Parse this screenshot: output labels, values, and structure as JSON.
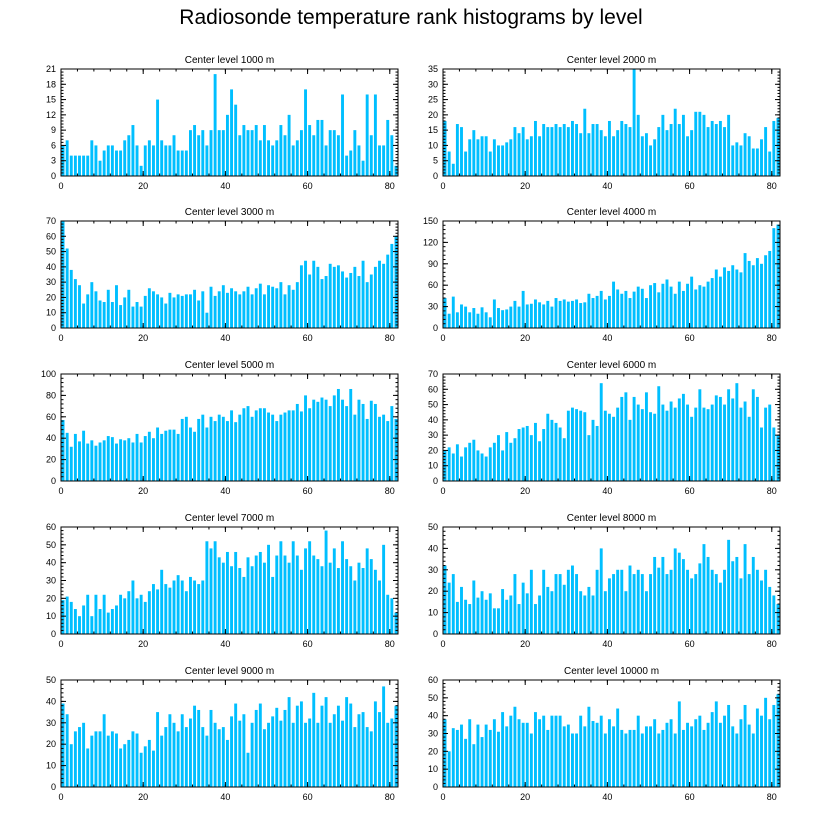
{
  "title": "Radiosonde temperature rank histograms by level",
  "colors": {
    "bar": "#00bfff",
    "axis": "#000000",
    "background": "#ffffff"
  },
  "chart_data": [
    {
      "type": "bar",
      "title": "Center level 1000 m",
      "xlim": [
        0,
        82
      ],
      "xticks": [
        0,
        20,
        40,
        60,
        80
      ],
      "ylim": [
        0,
        21
      ],
      "yticks": [
        0,
        3,
        6,
        9,
        12,
        15,
        18,
        21
      ],
      "values": [
        6,
        7,
        4,
        4,
        4,
        4,
        4,
        7,
        6,
        3,
        5,
        6,
        6,
        5,
        5,
        7,
        8,
        10,
        6,
        2,
        6,
        7,
        6,
        15,
        7,
        6,
        6,
        8,
        5,
        5,
        5,
        9,
        10,
        8,
        9,
        6,
        9,
        20,
        9,
        9,
        12,
        17,
        14,
        8,
        10,
        9,
        9,
        10,
        7,
        10,
        7,
        6,
        7,
        10,
        8,
        12,
        6,
        7,
        9,
        17,
        10,
        8,
        11,
        11,
        6,
        9,
        9,
        8,
        16,
        4,
        5,
        9,
        6,
        3,
        16,
        8,
        16,
        6,
        6,
        11,
        8,
        2
      ]
    },
    {
      "type": "bar",
      "title": "Center level 2000 m",
      "xlim": [
        0,
        82
      ],
      "xticks": [
        0,
        20,
        40,
        60,
        80
      ],
      "ylim": [
        0,
        35
      ],
      "yticks": [
        0,
        5,
        10,
        15,
        20,
        25,
        30,
        35
      ],
      "values": [
        18,
        8,
        4,
        17,
        16,
        8,
        12,
        15,
        12,
        13,
        13,
        8,
        12,
        10,
        10,
        11,
        12,
        16,
        14,
        16,
        12,
        13,
        18,
        13,
        17,
        16,
        16,
        17,
        16,
        17,
        16,
        18,
        17,
        14,
        22,
        14,
        17,
        17,
        15,
        13,
        18,
        13,
        15,
        18,
        17,
        16,
        35,
        20,
        13,
        14,
        10,
        12,
        16,
        20,
        15,
        17,
        22,
        17,
        20,
        13,
        15,
        21,
        21,
        20,
        16,
        18,
        17,
        18,
        16,
        20,
        10,
        11,
        10,
        14,
        13,
        9,
        9,
        12,
        16,
        8,
        18,
        19
      ]
    },
    {
      "type": "bar",
      "title": "Center level 3000 m",
      "xlim": [
        0,
        82
      ],
      "xticks": [
        0,
        20,
        40,
        60,
        80
      ],
      "ylim": [
        0,
        70
      ],
      "yticks": [
        0,
        10,
        20,
        30,
        40,
        50,
        60,
        70
      ],
      "values": [
        70,
        52,
        38,
        32,
        28,
        16,
        22,
        30,
        24,
        18,
        17,
        25,
        17,
        28,
        15,
        20,
        25,
        14,
        17,
        14,
        21,
        26,
        24,
        22,
        20,
        16,
        23,
        20,
        22,
        21,
        22,
        22,
        25,
        18,
        24,
        10,
        27,
        21,
        24,
        28,
        23,
        26,
        24,
        22,
        24,
        27,
        22,
        26,
        29,
        22,
        28,
        27,
        26,
        30,
        22,
        28,
        25,
        30,
        41,
        44,
        35,
        44,
        40,
        32,
        34,
        42,
        40,
        41,
        37,
        33,
        36,
        40,
        34,
        44,
        30,
        35,
        40,
        44,
        42,
        48,
        55,
        60
      ]
    },
    {
      "type": "bar",
      "title": "Center level 4000 m",
      "xlim": [
        0,
        82
      ],
      "xticks": [
        0,
        20,
        40,
        60,
        80
      ],
      "ylim": [
        0,
        150
      ],
      "yticks": [
        0,
        30,
        60,
        90,
        120,
        150
      ],
      "values": [
        42,
        20,
        44,
        22,
        33,
        30,
        22,
        28,
        20,
        29,
        22,
        15,
        40,
        28,
        25,
        26,
        30,
        38,
        30,
        52,
        33,
        34,
        40,
        36,
        33,
        38,
        30,
        42,
        38,
        40,
        37,
        38,
        40,
        35,
        36,
        48,
        42,
        45,
        52,
        40,
        45,
        65,
        54,
        48,
        52,
        42,
        51,
        58,
        55,
        42,
        60,
        63,
        50,
        62,
        68,
        58,
        48,
        65,
        52,
        62,
        72,
        54,
        60,
        58,
        65,
        70,
        82,
        72,
        85,
        80,
        88,
        82,
        78,
        105,
        94,
        88,
        98,
        90,
        102,
        108,
        140,
        145
      ]
    },
    {
      "type": "bar",
      "title": "Center level 5000 m",
      "xlim": [
        0,
        82
      ],
      "xticks": [
        0,
        20,
        40,
        60,
        80
      ],
      "ylim": [
        0,
        100
      ],
      "yticks": [
        0,
        20,
        40,
        60,
        80,
        100
      ],
      "values": [
        57,
        45,
        32,
        44,
        37,
        47,
        35,
        38,
        33,
        36,
        38,
        42,
        41,
        35,
        39,
        38,
        40,
        36,
        44,
        36,
        42,
        46,
        40,
        50,
        44,
        47,
        48,
        48,
        44,
        58,
        60,
        50,
        46,
        58,
        62,
        50,
        60,
        56,
        62,
        60,
        56,
        66,
        55,
        62,
        68,
        70,
        60,
        66,
        68,
        68,
        64,
        62,
        56,
        62,
        64,
        66,
        66,
        72,
        65,
        80,
        68,
        76,
        74,
        78,
        76,
        70,
        80,
        86,
        76,
        70,
        86,
        62,
        76,
        72,
        58,
        75,
        72,
        60,
        62,
        56,
        70,
        58
      ]
    },
    {
      "type": "bar",
      "title": "Center level 6000 m",
      "xlim": [
        0,
        82
      ],
      "xticks": [
        0,
        20,
        40,
        60,
        80
      ],
      "ylim": [
        0,
        70
      ],
      "yticks": [
        0,
        10,
        20,
        30,
        40,
        50,
        60,
        70
      ],
      "values": [
        20,
        22,
        18,
        24,
        16,
        22,
        25,
        27,
        20,
        18,
        16,
        22,
        25,
        30,
        20,
        32,
        25,
        28,
        34,
        35,
        36,
        30,
        38,
        26,
        34,
        44,
        40,
        38,
        35,
        28,
        46,
        48,
        47,
        46,
        45,
        30,
        40,
        36,
        64,
        46,
        44,
        42,
        48,
        55,
        58,
        40,
        55,
        50,
        47,
        58,
        45,
        44,
        62,
        50,
        46,
        52,
        48,
        54,
        57,
        50,
        42,
        48,
        60,
        48,
        47,
        50,
        56,
        55,
        50,
        60,
        54,
        64,
        48,
        52,
        42,
        60,
        55,
        35,
        48,
        50,
        35,
        30
      ]
    },
    {
      "type": "bar",
      "title": "Center level 7000 m",
      "xlim": [
        0,
        82
      ],
      "xticks": [
        0,
        20,
        40,
        60,
        80
      ],
      "ylim": [
        0,
        60
      ],
      "yticks": [
        0,
        10,
        20,
        30,
        40,
        50,
        60
      ],
      "values": [
        19,
        21,
        18,
        14,
        10,
        16,
        22,
        10,
        22,
        14,
        22,
        12,
        14,
        16,
        22,
        20,
        24,
        30,
        20,
        22,
        18,
        24,
        28,
        25,
        36,
        28,
        26,
        30,
        33,
        30,
        24,
        32,
        30,
        28,
        30,
        52,
        48,
        52,
        43,
        40,
        46,
        38,
        46,
        37,
        32,
        43,
        38,
        44,
        46,
        40,
        50,
        32,
        44,
        52,
        44,
        40,
        52,
        44,
        36,
        48,
        52,
        44,
        42,
        38,
        58,
        40,
        48,
        37,
        52,
        42,
        38,
        30,
        40,
        37,
        48,
        42,
        36,
        30,
        50,
        22,
        20,
        12
      ]
    },
    {
      "type": "bar",
      "title": "Center level 8000 m",
      "xlim": [
        0,
        82
      ],
      "xticks": [
        0,
        20,
        40,
        60,
        80
      ],
      "ylim": [
        0,
        50
      ],
      "yticks": [
        0,
        10,
        20,
        30,
        40,
        50
      ],
      "values": [
        32,
        24,
        28,
        15,
        22,
        16,
        14,
        25,
        17,
        20,
        16,
        19,
        12,
        12,
        21,
        16,
        18,
        28,
        14,
        24,
        19,
        30,
        14,
        18,
        30,
        22,
        20,
        28,
        28,
        23,
        30,
        32,
        28,
        20,
        18,
        22,
        18,
        30,
        40,
        20,
        26,
        28,
        30,
        30,
        20,
        32,
        28,
        30,
        28,
        20,
        28,
        36,
        31,
        36,
        28,
        30,
        40,
        38,
        35,
        30,
        26,
        28,
        33,
        42,
        36,
        30,
        28,
        24,
        30,
        44,
        34,
        36,
        26,
        42,
        28,
        36,
        30,
        25,
        30,
        22,
        18,
        14
      ]
    },
    {
      "type": "bar",
      "title": "Center level 9000 m",
      "xlim": [
        0,
        82
      ],
      "xticks": [
        0,
        20,
        40,
        60,
        80
      ],
      "ylim": [
        0,
        50
      ],
      "yticks": [
        0,
        10,
        20,
        30,
        40,
        50
      ],
      "values": [
        39,
        34,
        20,
        26,
        28,
        30,
        18,
        24,
        26,
        26,
        34,
        24,
        26,
        25,
        18,
        20,
        22,
        26,
        25,
        16,
        19,
        22,
        17,
        35,
        24,
        28,
        34,
        30,
        26,
        34,
        28,
        32,
        38,
        36,
        28,
        24,
        36,
        30,
        27,
        28,
        22,
        33,
        39,
        31,
        34,
        16,
        30,
        36,
        39,
        27,
        30,
        33,
        37,
        31,
        36,
        42,
        30,
        38,
        40,
        30,
        32,
        44,
        30,
        38,
        42,
        30,
        34,
        38,
        31,
        42,
        39,
        28,
        34,
        35,
        28,
        26,
        40,
        35,
        47,
        30,
        32,
        38
      ]
    },
    {
      "type": "bar",
      "title": "Center level 10000 m",
      "xlim": [
        0,
        82
      ],
      "xticks": [
        0,
        20,
        40,
        60,
        80
      ],
      "ylim": [
        0,
        60
      ],
      "yticks": [
        0,
        10,
        20,
        30,
        40,
        50,
        60
      ],
      "values": [
        38,
        20,
        33,
        32,
        35,
        27,
        38,
        24,
        35,
        28,
        35,
        32,
        38,
        31,
        42,
        34,
        40,
        45,
        38,
        36,
        36,
        30,
        42,
        38,
        40,
        32,
        40,
        40,
        40,
        34,
        35,
        30,
        30,
        40,
        34,
        45,
        37,
        36,
        40,
        30,
        38,
        34,
        44,
        32,
        30,
        32,
        32,
        40,
        30,
        34,
        34,
        38,
        30,
        32,
        36,
        38,
        30,
        48,
        32,
        36,
        34,
        38,
        40,
        32,
        36,
        42,
        48,
        36,
        40,
        46,
        34,
        30,
        38,
        46,
        35,
        30,
        44,
        40,
        50,
        38,
        46,
        52
      ]
    }
  ]
}
